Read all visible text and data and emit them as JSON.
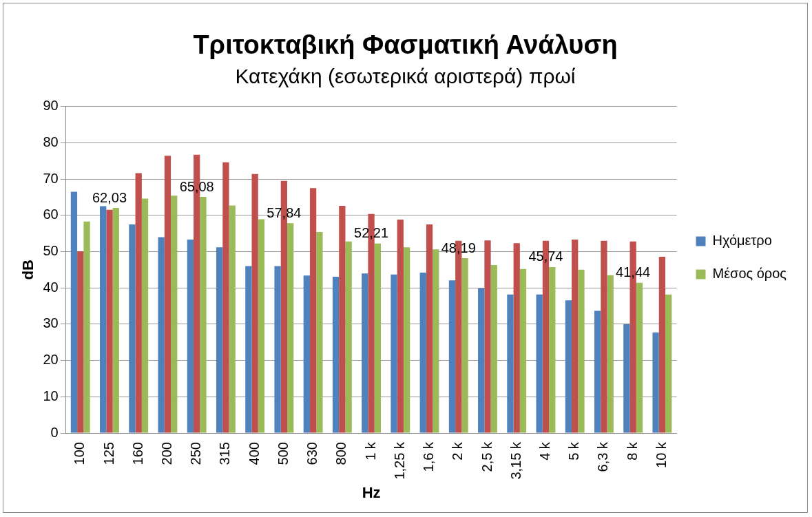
{
  "chart_data": {
    "type": "bar",
    "title": "Τριτοκταβική Φασματική Ανάλυση",
    "subtitle": "Κατεχάκη (εσωτερικά αριστερά) πρωί",
    "xlabel": "Hz",
    "ylabel": "dB",
    "categories": [
      "100",
      "125",
      "160",
      "200",
      "250",
      "315",
      "400",
      "500",
      "630",
      "800",
      "1 k",
      "1,25 k",
      "1,6 k",
      "2 k",
      "2,5 k",
      "3,15 k",
      "4 k",
      "5 k",
      "6,3 k",
      "8 k",
      "10 k"
    ],
    "series": [
      {
        "name": "Ηχόμετρο",
        "color": "#4f81bd",
        "values": [
          66.5,
          62.5,
          57.5,
          54,
          53.3,
          51.2,
          46,
          46,
          43.4,
          43.1,
          44,
          43.7,
          44.2,
          42.1,
          39.9,
          38.2,
          38.2,
          36.6,
          33.7,
          30,
          27.7
        ]
      },
      {
        "color": "#c0504d",
        "values": [
          50.1,
          61.5,
          71.6,
          76.4,
          76.7,
          74.6,
          71.4,
          69.5,
          67.5,
          62.6,
          60.4,
          58.8,
          57.5,
          53,
          53.1,
          52.3,
          53,
          53.3,
          53,
          52.8,
          48.6
        ]
      },
      {
        "name": "Μέσος όρος",
        "color": "#9bbb59",
        "values": [
          58.3,
          62.03,
          64.6,
          65.4,
          65.08,
          62.7,
          58.9,
          57.84,
          55.4,
          52.8,
          52.21,
          51.2,
          50.6,
          48.19,
          46.3,
          45.2,
          45.74,
          45,
          43.5,
          41.44,
          38.2
        ],
        "value_labels": [
          null,
          "62,03",
          null,
          null,
          "65,08",
          null,
          null,
          "57,84",
          null,
          null,
          "52,21",
          null,
          null,
          "48,19",
          null,
          null,
          "45,74",
          null,
          null,
          "41,44",
          null
        ]
      }
    ],
    "ylim": [
      0,
      90
    ],
    "yticks": [
      0,
      10,
      20,
      30,
      40,
      50,
      60,
      70,
      80,
      90
    ],
    "grid": "y",
    "legend": "right"
  }
}
